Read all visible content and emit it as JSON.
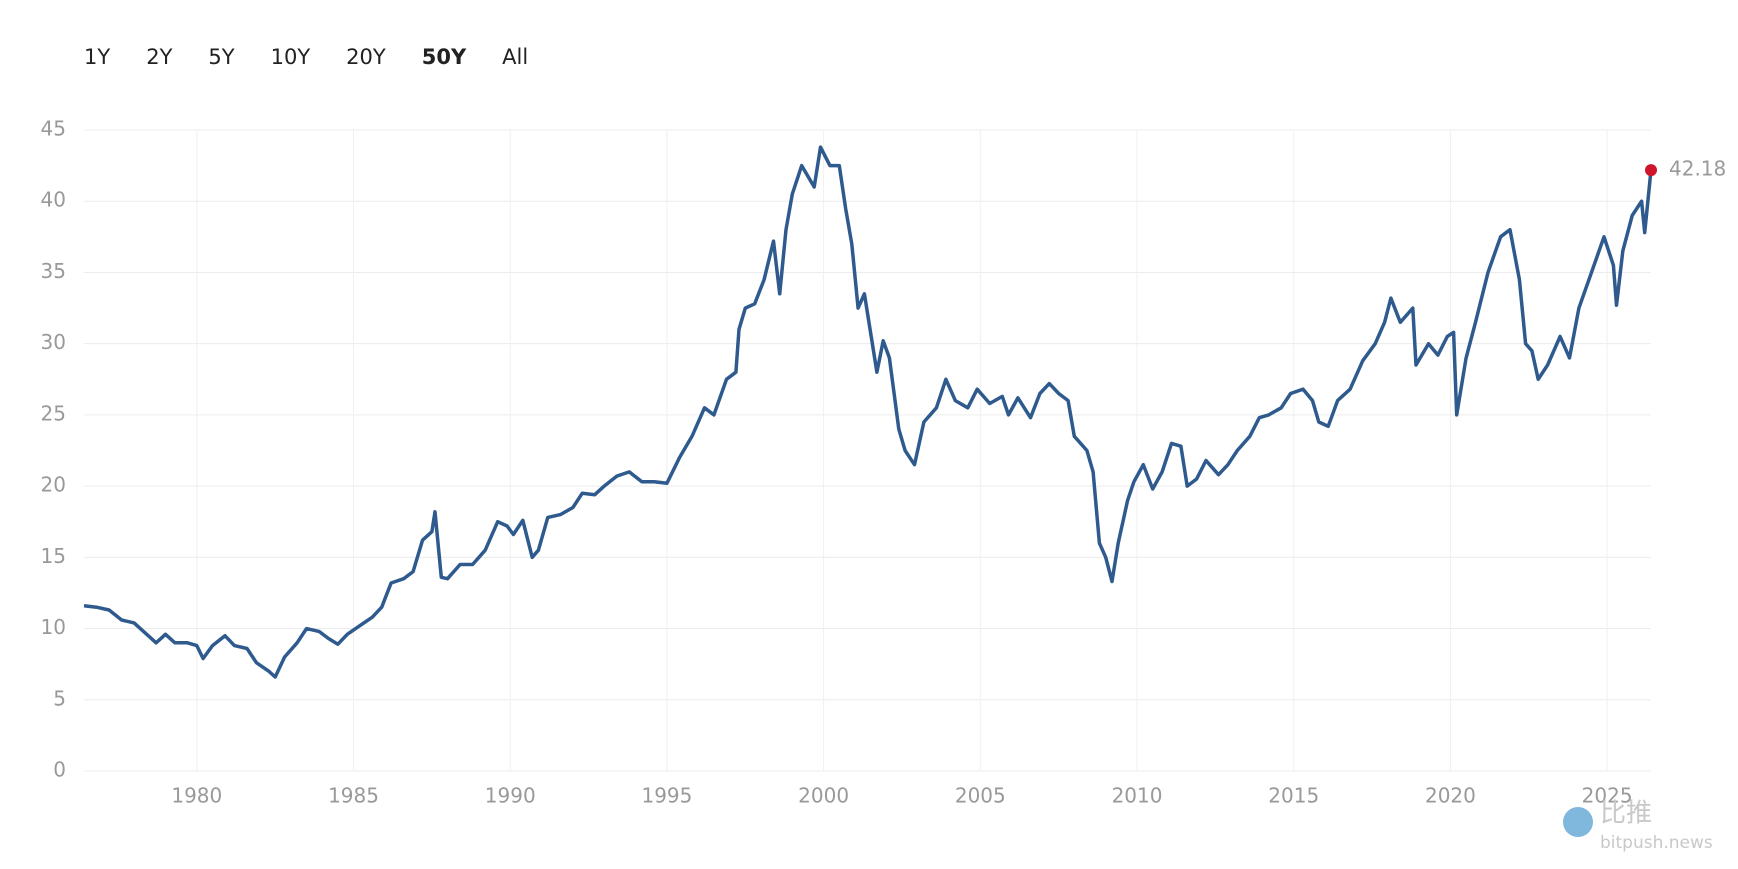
{
  "buttons": [
    {
      "label": "1Y",
      "selected": false
    },
    {
      "label": "2Y",
      "selected": false
    },
    {
      "label": "5Y",
      "selected": false
    },
    {
      "label": "10Y",
      "selected": false
    },
    {
      "label": "20Y",
      "selected": false
    },
    {
      "label": "50Y",
      "selected": true
    },
    {
      "label": "All",
      "selected": false
    }
  ],
  "watermark": {
    "brand": "比推",
    "site": "bitpush.news"
  },
  "chart_data": {
    "type": "line",
    "x": [
      1976.4,
      1976.8,
      1977.2,
      1977.6,
      1978.0,
      1978.3,
      1978.7,
      1979.0,
      1979.3,
      1979.7,
      1980.0,
      1980.2,
      1980.5,
      1980.9,
      1981.2,
      1981.6,
      1981.9,
      1982.3,
      1982.5,
      1982.8,
      1983.2,
      1983.5,
      1983.9,
      1984.2,
      1984.5,
      1984.8,
      1985.2,
      1985.6,
      1985.9,
      1986.2,
      1986.6,
      1986.9,
      1987.2,
      1987.5,
      1987.6,
      1987.8,
      1988.0,
      1988.4,
      1988.8,
      1989.2,
      1989.6,
      1989.9,
      1990.1,
      1990.4,
      1990.7,
      1990.9,
      1991.2,
      1991.6,
      1992.0,
      1992.3,
      1992.7,
      1993.0,
      1993.4,
      1993.8,
      1994.2,
      1994.6,
      1995.0,
      1995.4,
      1995.8,
      1996.2,
      1996.5,
      1996.9,
      1997.2,
      1997.3,
      1997.5,
      1997.8,
      1998.1,
      1998.4,
      1998.6,
      1998.8,
      1999.0,
      1999.3,
      1999.7,
      1999.9,
      2000.2,
      2000.5,
      2000.7,
      2000.9,
      2001.1,
      2001.3,
      2001.7,
      2001.9,
      2002.1,
      2002.4,
      2002.6,
      2002.9,
      2003.2,
      2003.6,
      2003.9,
      2004.2,
      2004.6,
      2004.9,
      2005.3,
      2005.7,
      2005.9,
      2006.2,
      2006.6,
      2006.9,
      2007.2,
      2007.5,
      2007.8,
      2008.0,
      2008.4,
      2008.6,
      2008.8,
      2009.0,
      2009.2,
      2009.4,
      2009.7,
      2009.9,
      2010.2,
      2010.5,
      2010.8,
      2011.1,
      2011.4,
      2011.6,
      2011.9,
      2012.2,
      2012.6,
      2012.9,
      2013.2,
      2013.6,
      2013.9,
      2014.2,
      2014.6,
      2014.9,
      2015.3,
      2015.6,
      2015.8,
      2016.1,
      2016.4,
      2016.8,
      2017.2,
      2017.6,
      2017.9,
      2018.1,
      2018.4,
      2018.8,
      2018.9,
      2019.3,
      2019.6,
      2019.9,
      2020.1,
      2020.2,
      2020.5,
      2020.8,
      2021.2,
      2021.6,
      2021.9,
      2022.2,
      2022.4,
      2022.6,
      2022.8,
      2023.1,
      2023.5,
      2023.8,
      2024.1,
      2024.5,
      2024.9,
      2025.2,
      2025.3,
      2025.5,
      2025.8,
      2026.1,
      2026.2,
      2026.4
    ],
    "series": [
      {
        "color": "#2e5a8e",
        "end_marker_color": "#d0142c",
        "values": [
          11.6,
          11.5,
          11.3,
          10.6,
          10.4,
          9.8,
          9.0,
          9.6,
          9.0,
          9.0,
          8.8,
          7.9,
          8.8,
          9.5,
          8.8,
          8.6,
          7.6,
          7.0,
          6.6,
          8.0,
          9.0,
          10.0,
          9.8,
          9.3,
          8.9,
          9.6,
          10.2,
          10.8,
          11.5,
          13.2,
          13.5,
          14.0,
          16.2,
          16.8,
          18.2,
          13.6,
          13.5,
          14.5,
          14.5,
          15.5,
          17.5,
          17.2,
          16.6,
          17.6,
          15.0,
          15.5,
          17.8,
          18.0,
          18.5,
          19.5,
          19.4,
          20.0,
          20.7,
          21.0,
          20.3,
          20.3,
          20.2,
          22.0,
          23.5,
          25.5,
          25.0,
          27.5,
          28.0,
          31.0,
          32.5,
          32.8,
          34.5,
          37.2,
          33.5,
          38.0,
          40.5,
          42.5,
          41.0,
          43.8,
          42.5,
          42.5,
          39.5,
          37.0,
          32.5,
          33.5,
          28.0,
          30.2,
          29.0,
          24.0,
          22.5,
          21.5,
          24.5,
          25.5,
          27.5,
          26.0,
          25.5,
          26.8,
          25.8,
          26.3,
          25.0,
          26.2,
          24.8,
          26.5,
          27.2,
          26.5,
          26.0,
          23.5,
          22.5,
          21.0,
          16.0,
          15.0,
          13.3,
          16.0,
          19.0,
          20.3,
          21.5,
          19.8,
          21.0,
          23.0,
          22.8,
          20.0,
          20.5,
          21.8,
          20.8,
          21.5,
          22.5,
          23.5,
          24.8,
          25.0,
          25.5,
          26.5,
          26.8,
          26.0,
          24.5,
          24.2,
          26.0,
          26.8,
          28.8,
          30.0,
          31.5,
          33.2,
          31.5,
          32.5,
          28.5,
          30.0,
          29.2,
          30.5,
          30.8,
          25.0,
          29.0,
          31.5,
          35.0,
          37.5,
          38.0,
          34.5,
          30.0,
          29.5,
          27.5,
          28.5,
          30.5,
          29.0,
          32.5,
          35.0,
          37.5,
          35.5,
          32.7,
          36.5,
          39.0,
          40.0,
          37.8,
          42.18
        ]
      }
    ],
    "xlim": [
      1976.4,
      2026.4
    ],
    "xticks": [
      1980,
      1985,
      1990,
      1995,
      2000,
      2005,
      2010,
      2015,
      2020,
      2025
    ],
    "ylim": [
      0,
      45
    ],
    "yticks": [
      0,
      5,
      10,
      15,
      20,
      25,
      30,
      35,
      40,
      45
    ],
    "grid": true
  }
}
